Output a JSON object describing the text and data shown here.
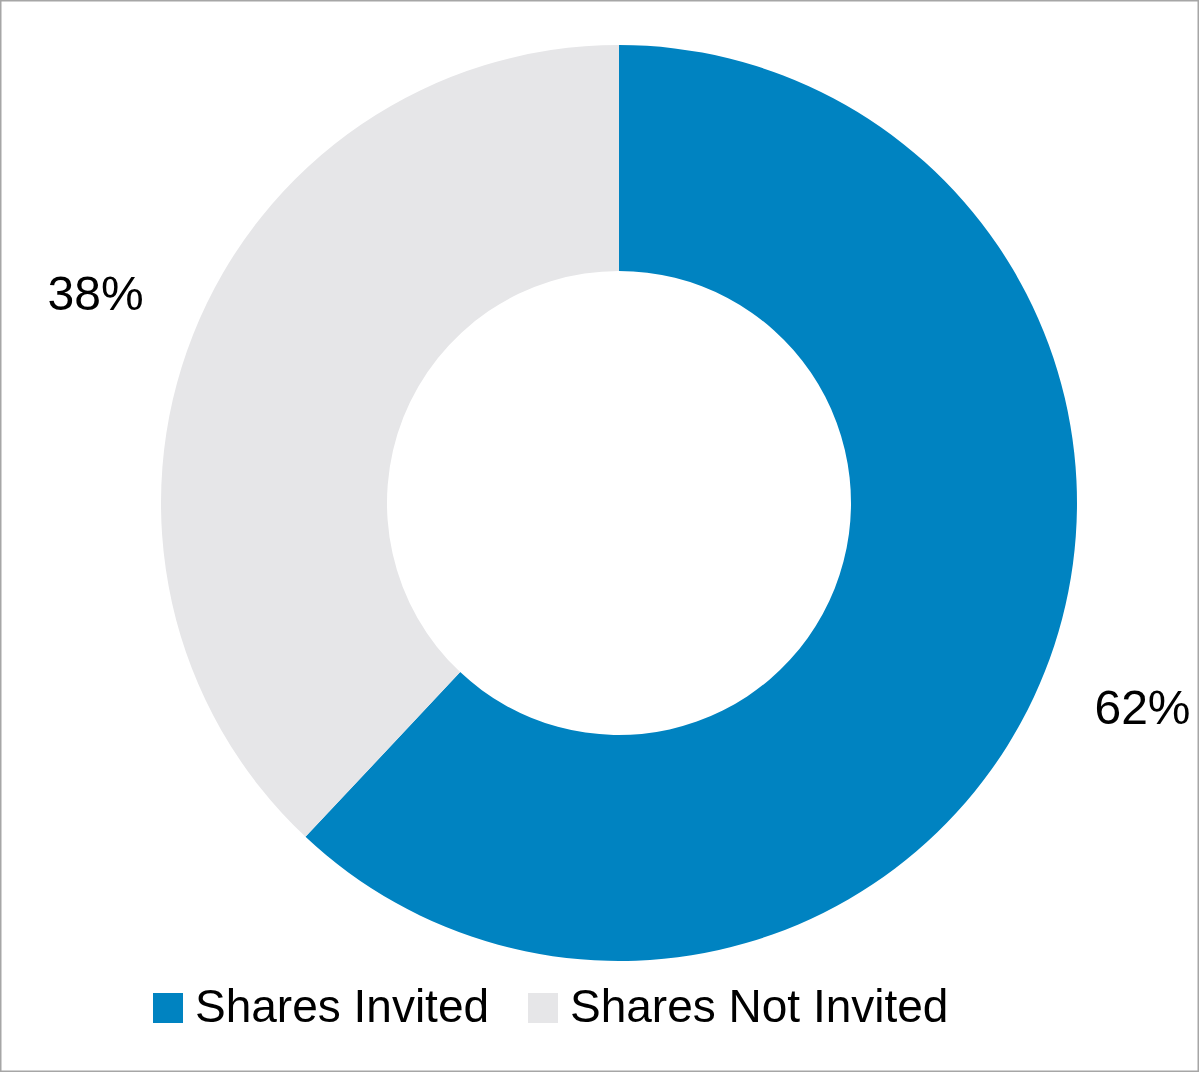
{
  "chart_data": {
    "type": "donut",
    "categories": [
      "Shares Invited",
      "Shares Not Invited"
    ],
    "values": [
      62,
      38
    ],
    "colors": [
      "#0083c1",
      "#e6e6e8"
    ],
    "value_labels": [
      "62%",
      "38%"
    ],
    "legend": "bottom"
  }
}
